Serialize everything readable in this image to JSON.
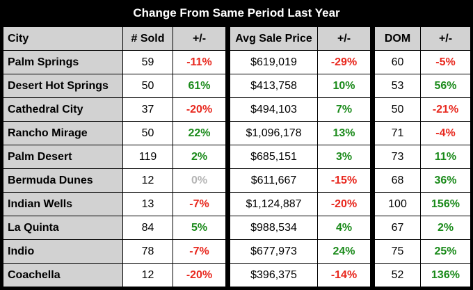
{
  "title": "Change From Same Period Last Year",
  "headers": {
    "city": "City",
    "sold": "# Sold",
    "sold_chg": "+/-",
    "price": "Avg Sale Price",
    "price_chg": "+/-",
    "dom": "DOM",
    "dom_chg": "+/-"
  },
  "rows": [
    {
      "city": "Palm Springs",
      "sold": "59",
      "sold_chg": "-11%",
      "price": "$619,019",
      "price_chg": "-29%",
      "dom": "60",
      "dom_chg": "-5%"
    },
    {
      "city": "Desert Hot Springs",
      "sold": "50",
      "sold_chg": "61%",
      "price": "$413,758",
      "price_chg": "10%",
      "dom": "53",
      "dom_chg": "56%"
    },
    {
      "city": "Cathedral City",
      "sold": "37",
      "sold_chg": "-20%",
      "price": "$494,103",
      "price_chg": "7%",
      "dom": "50",
      "dom_chg": "-21%"
    },
    {
      "city": "Rancho Mirage",
      "sold": "50",
      "sold_chg": "22%",
      "price": "$1,096,178",
      "price_chg": "13%",
      "dom": "71",
      "dom_chg": "-4%"
    },
    {
      "city": "Palm Desert",
      "sold": "119",
      "sold_chg": "2%",
      "price": "$685,151",
      "price_chg": "3%",
      "dom": "73",
      "dom_chg": "11%"
    },
    {
      "city": "Bermuda Dunes",
      "sold": "12",
      "sold_chg": "0%",
      "price": "$611,667",
      "price_chg": "-15%",
      "dom": "68",
      "dom_chg": "36%"
    },
    {
      "city": "Indian Wells",
      "sold": "13",
      "sold_chg": "-7%",
      "price": "$1,124,887",
      "price_chg": "-20%",
      "dom": "100",
      "dom_chg": "156%"
    },
    {
      "city": "La Quinta",
      "sold": "84",
      "sold_chg": "5%",
      "price": "$988,534",
      "price_chg": "4%",
      "dom": "67",
      "dom_chg": "2%"
    },
    {
      "city": "Indio",
      "sold": "78",
      "sold_chg": "-7%",
      "price": "$677,973",
      "price_chg": "24%",
      "dom": "75",
      "dom_chg": "25%"
    },
    {
      "city": "Coachella",
      "sold": "12",
      "sold_chg": "-20%",
      "price": "$396,375",
      "price_chg": "-14%",
      "dom": "52",
      "dom_chg": "136%"
    }
  ],
  "colors": {
    "positive": "#1a8a1a",
    "negative": "#e8281e",
    "zero": "#b5b5b5",
    "header_bg": "#d2d2d2",
    "frame": "#000000"
  }
}
